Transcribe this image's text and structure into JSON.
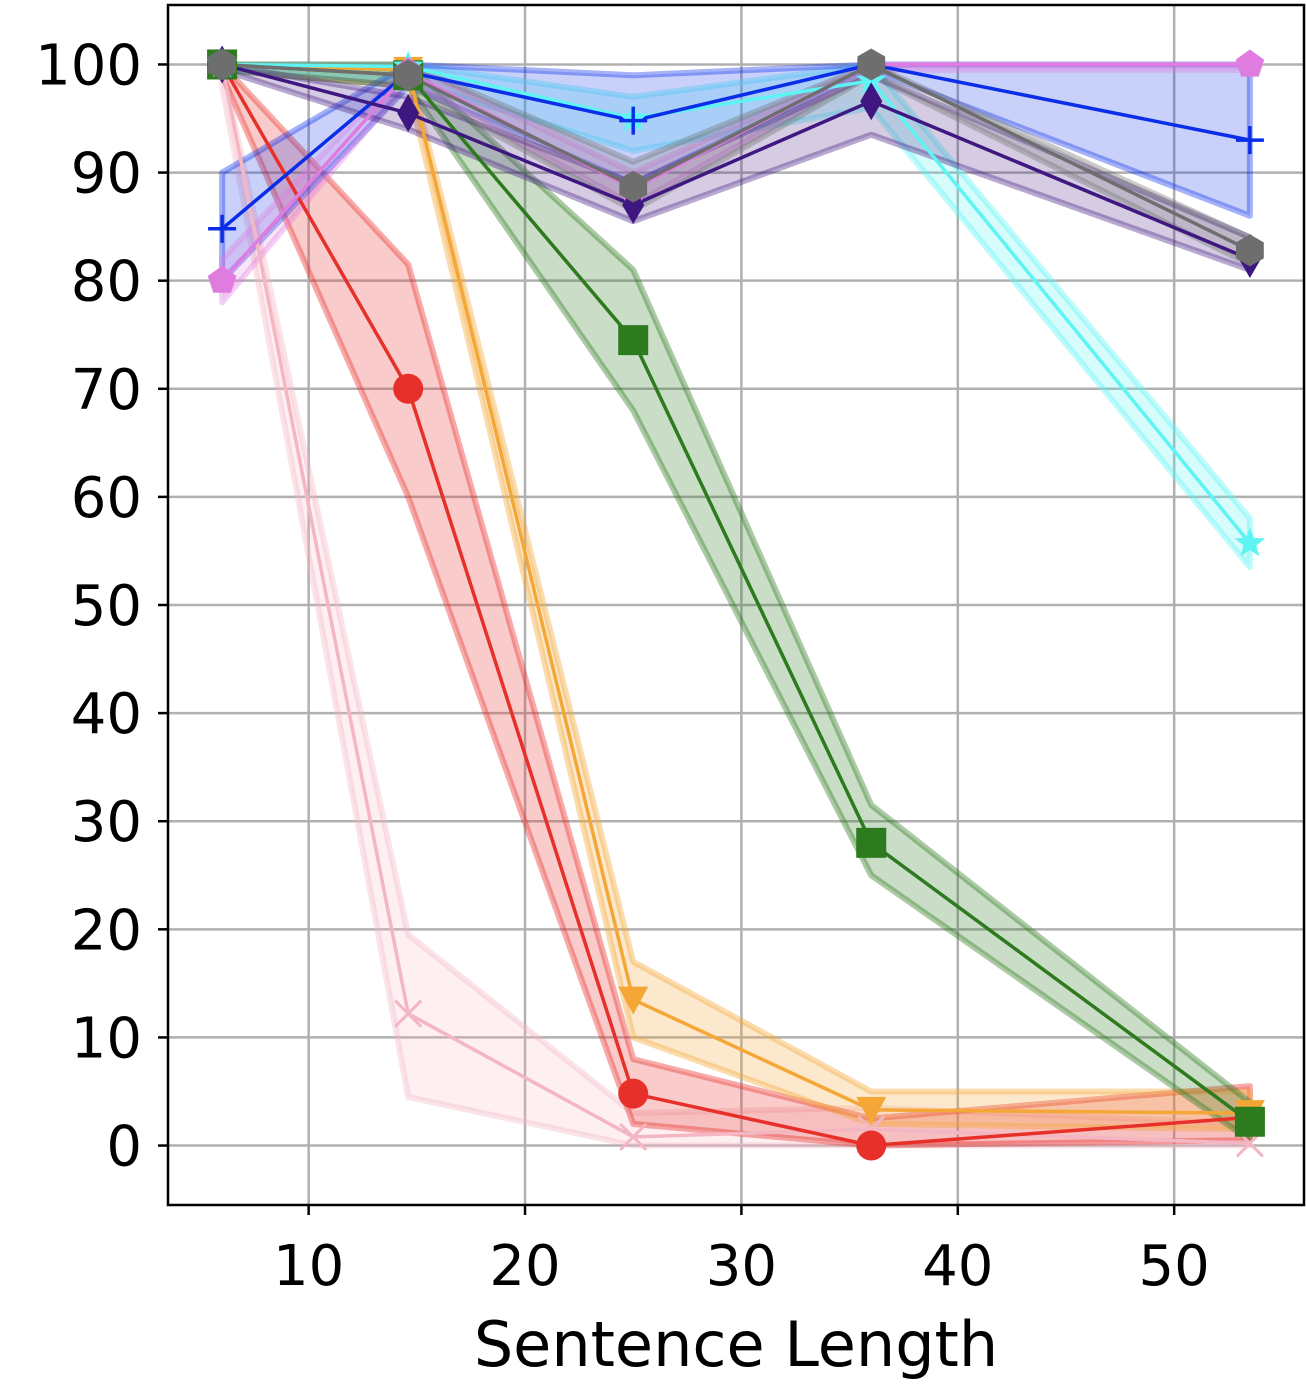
{
  "chart_data": {
    "type": "line",
    "title": "",
    "xlabel": "Sentence Length",
    "ylabel": "",
    "x": [
      6,
      14.6,
      25,
      36,
      53.5
    ],
    "xlim": [
      3.5,
      56
    ],
    "ylim": [
      -5.5,
      105.5
    ],
    "xticks": [
      10,
      20,
      30,
      40,
      50
    ],
    "yticks": [
      0,
      10,
      20,
      30,
      40,
      50,
      60,
      70,
      80,
      90,
      100
    ],
    "grid": true,
    "legend": "none",
    "series": [
      {
        "name": "pink-x",
        "color": "#f4b6c2",
        "marker": "x",
        "values": [
          100,
          12.2,
          0.8,
          1.5,
          0.2
        ],
        "band_lower": [
          98,
          4.5,
          0,
          0,
          0
        ],
        "band_upper": [
          100,
          19.5,
          3,
          3.5,
          2
        ],
        "band_alpha": 0.22
      },
      {
        "name": "red-circle",
        "color": "#e8302a",
        "marker": "circle",
        "values": [
          100,
          70,
          4.8,
          0,
          2.6
        ],
        "band_lower": [
          99,
          60,
          2,
          0,
          0.5
        ],
        "band_upper": [
          100,
          81.5,
          8,
          2.5,
          5.5
        ],
        "band_alpha": 0.25
      },
      {
        "name": "orange-triangle",
        "color": "#f4a736",
        "marker": "triangle-down",
        "values": [
          100,
          99.5,
          13.5,
          3.3,
          3
        ],
        "band_lower": [
          99.5,
          98,
          10,
          2,
          1.5
        ],
        "band_upper": [
          100,
          100,
          17,
          5,
          5
        ],
        "band_alpha": 0.25
      },
      {
        "name": "green-square",
        "color": "#2d7a1f",
        "marker": "square",
        "values": [
          100,
          99,
          74.5,
          28,
          2.2
        ],
        "band_lower": [
          99.5,
          98,
          68,
          25,
          0.5
        ],
        "band_upper": [
          100,
          100,
          81,
          31.5,
          4
        ],
        "band_alpha": 0.25
      },
      {
        "name": "cyan-star",
        "color": "#5ff4f4",
        "marker": "star",
        "values": [
          100,
          99.8,
          95,
          98.5,
          55.7
        ],
        "band_lower": [
          99.5,
          98.5,
          92,
          96,
          53.5
        ],
        "band_upper": [
          100,
          100,
          97,
          100,
          58
        ],
        "band_alpha": 0.25
      },
      {
        "name": "blue-plus",
        "color": "#0a2ee8",
        "marker": "plus",
        "values": [
          84.8,
          99.3,
          94.8,
          100,
          93
        ],
        "band_lower": [
          80,
          98,
          89,
          99.5,
          86
        ],
        "band_upper": [
          90,
          100,
          99,
          100,
          100
        ],
        "band_alpha": 0.22
      },
      {
        "name": "magenta-pentagon",
        "color": "#e07be0",
        "marker": "pentagon",
        "values": [
          80,
          99.3,
          88.5,
          100,
          100
        ],
        "band_lower": [
          78,
          98.5,
          87,
          99.5,
          99.5
        ],
        "band_upper": [
          82,
          100,
          90,
          100,
          100
        ],
        "band_alpha": 0.2
      },
      {
        "name": "indigo-diamond",
        "color": "#3f1780",
        "marker": "diamond",
        "values": [
          100,
          95.5,
          87,
          96.6,
          82
        ],
        "band_lower": [
          99.5,
          94,
          85.5,
          93.5,
          81
        ],
        "band_upper": [
          100,
          97,
          89,
          99,
          84
        ],
        "band_alpha": 0.22
      },
      {
        "name": "gray-hexagon",
        "color": "#6e6e6e",
        "marker": "hexagon",
        "values": [
          100,
          99,
          88.7,
          100,
          82.8
        ],
        "band_lower": [
          99.5,
          98,
          86.5,
          99,
          81.5
        ],
        "band_upper": [
          100,
          100,
          91,
          100,
          84
        ],
        "band_alpha": 0.22
      }
    ]
  }
}
